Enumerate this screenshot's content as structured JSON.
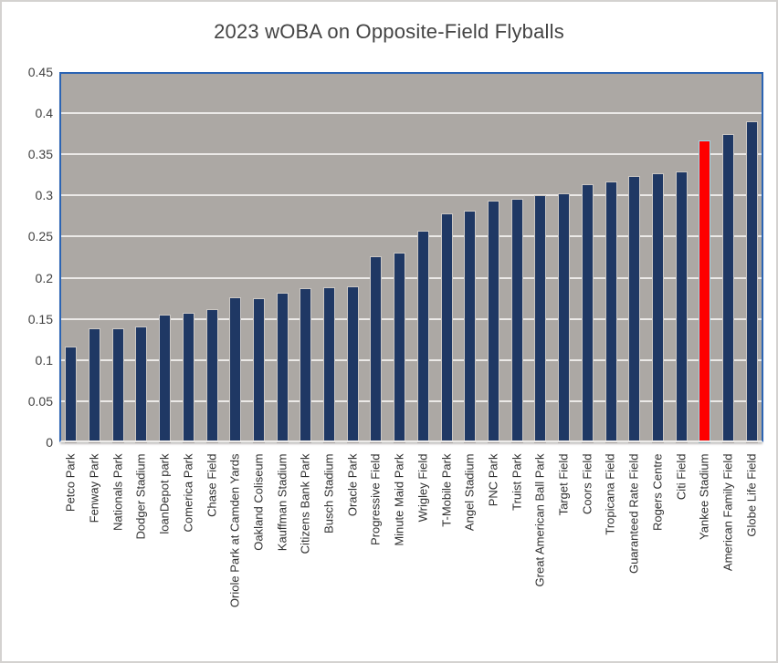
{
  "chart_data": {
    "type": "bar",
    "title": "2023 wOBA on Opposite-Field Flyballs",
    "categories": [
      "Petco Park",
      "Fenway Park",
      "Nationals Park",
      "Dodger Stadium",
      "loanDepot park",
      "Comerica Park",
      "Chase Field",
      "Oriole Park at Camden Yards",
      "Oakland Coliseum",
      "Kauffman Stadium",
      "Citizens Bank Park",
      "Busch Stadium",
      "Oracle Park",
      "Progressive Field",
      "Minute Maid Park",
      "Wrigley Field",
      "T-Mobile Park",
      "Angel Stadium",
      "PNC Park",
      "Truist Park",
      "Great American Ball Park",
      "Target Field",
      "Coors Field",
      "Tropicana Field",
      "Guaranteed Rate Field",
      "Rogers Centre",
      "Citi Field",
      "Yankee Stadium",
      "American Family Field",
      "Globe Life Field"
    ],
    "values": [
      0.115,
      0.137,
      0.138,
      0.14,
      0.154,
      0.156,
      0.161,
      0.175,
      0.174,
      0.181,
      0.186,
      0.187,
      0.188,
      0.225,
      0.229,
      0.256,
      0.277,
      0.28,
      0.293,
      0.295,
      0.299,
      0.301,
      0.313,
      0.316,
      0.323,
      0.326,
      0.328,
      0.366,
      0.373,
      0.389
    ],
    "highlight_category": "Yankee Stadium",
    "highlight_index": 27,
    "xlabel": "",
    "ylabel": "",
    "ylim": [
      0,
      0.45
    ],
    "ytick_step": 0.05,
    "ytick_labels": [
      "0.45",
      "0.4",
      "0.35",
      "0.3",
      "0.25",
      "0.2",
      "0.15",
      "0.1",
      "0.05",
      "0"
    ],
    "grid": true,
    "legend": false,
    "colors": {
      "bar": "#1f3864",
      "highlight_bar": "#fe0000",
      "highlight_outline": "#9ed7e8",
      "plot_background": "#aca8a4",
      "gridline": "#ebe9e7",
      "plot_border": "#2b64b4",
      "title_text": "#444444",
      "axis_text": "#404040"
    }
  }
}
